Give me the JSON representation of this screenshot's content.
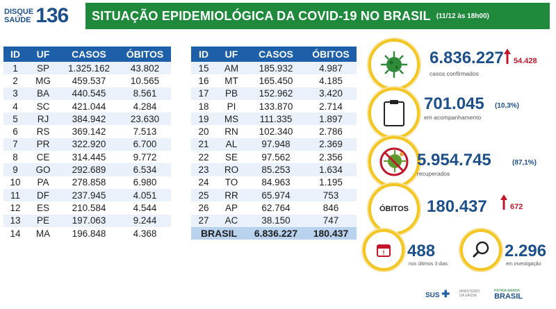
{
  "header": {
    "logo_text_top": "DISQUE",
    "logo_text_bottom": "SAÚDE",
    "logo_number": "136",
    "title": "SITUAÇÃO EPIDEMIOLÓGICA DA COVID-19 NO BRASIL",
    "date": "(11/12 às 18h00)"
  },
  "table": {
    "columns": [
      "ID",
      "UF",
      "CASOS",
      "ÓBITOS"
    ],
    "left_rows": [
      [
        "1",
        "SP",
        "1.325.162",
        "43.802"
      ],
      [
        "2",
        "MG",
        "459.537",
        "10.565"
      ],
      [
        "3",
        "BA",
        "440.545",
        "8.561"
      ],
      [
        "4",
        "SC",
        "421.044",
        "4.284"
      ],
      [
        "5",
        "RJ",
        "384.942",
        "23.630"
      ],
      [
        "6",
        "RS",
        "369.142",
        "7.513"
      ],
      [
        "7",
        "PR",
        "322.920",
        "6.700"
      ],
      [
        "8",
        "CE",
        "314.445",
        "9.772"
      ],
      [
        "9",
        "GO",
        "292.689",
        "6.534"
      ],
      [
        "10",
        "PA",
        "278.858",
        "6.980"
      ],
      [
        "11",
        "DF",
        "237.945",
        "4.051"
      ],
      [
        "12",
        "ES",
        "210.584",
        "4.544"
      ],
      [
        "13",
        "PE",
        "197.063",
        "9.244"
      ],
      [
        "14",
        "MA",
        "196.848",
        "4.368"
      ]
    ],
    "right_rows": [
      [
        "15",
        "AM",
        "185.932",
        "4.987"
      ],
      [
        "16",
        "MT",
        "165.450",
        "4.185"
      ],
      [
        "17",
        "PB",
        "152.962",
        "3.420"
      ],
      [
        "18",
        "PI",
        "133.870",
        "2.714"
      ],
      [
        "19",
        "MS",
        "111.335",
        "1.897"
      ],
      [
        "20",
        "RN",
        "102.340",
        "2.786"
      ],
      [
        "21",
        "AL",
        "97.948",
        "2.369"
      ],
      [
        "22",
        "SE",
        "97.562",
        "2.356"
      ],
      [
        "23",
        "RO",
        "85.253",
        "1.634"
      ],
      [
        "24",
        "TO",
        "84.963",
        "1.195"
      ],
      [
        "25",
        "RR",
        "65.974",
        "753"
      ],
      [
        "26",
        "AP",
        "62.764",
        "846"
      ],
      [
        "27",
        "AC",
        "38.150",
        "747"
      ]
    ],
    "total": {
      "label": "BRASIL",
      "cases": "6.836.227",
      "deaths": "180.437"
    }
  },
  "stats": {
    "confirmed": {
      "value": "6.836.227",
      "delta": "54.428",
      "label": "casos confirmados",
      "icon": "virus-icon"
    },
    "monitoring": {
      "value": "701.045",
      "pct": "(10,3%)",
      "label": "em acompanhamento",
      "icon": "clipboard-icon"
    },
    "recovered": {
      "value": "5.954.745",
      "pct": "(87,1%)",
      "label": "recuperados",
      "icon": "no-virus-icon"
    },
    "deaths": {
      "badge": "ÓBITOS",
      "value": "180.437",
      "delta": "672"
    },
    "recent": {
      "value": "488",
      "label": "nos últimos 3 dias",
      "icon": "calendar-icon"
    },
    "investigation": {
      "value": "2.296",
      "label": "em investigação",
      "icon": "magnifier-icon"
    }
  },
  "footer": {
    "sus": "SUS",
    "ministerio": "MINISTÉRIO DA SAÚDE",
    "patria": "PÁTRIA AMADA",
    "brasil": "BRASIL"
  },
  "colors": {
    "green": "#1f8a3c",
    "blue": "#1d5fa8",
    "gold": "#f3c623",
    "red": "#c0152a"
  }
}
